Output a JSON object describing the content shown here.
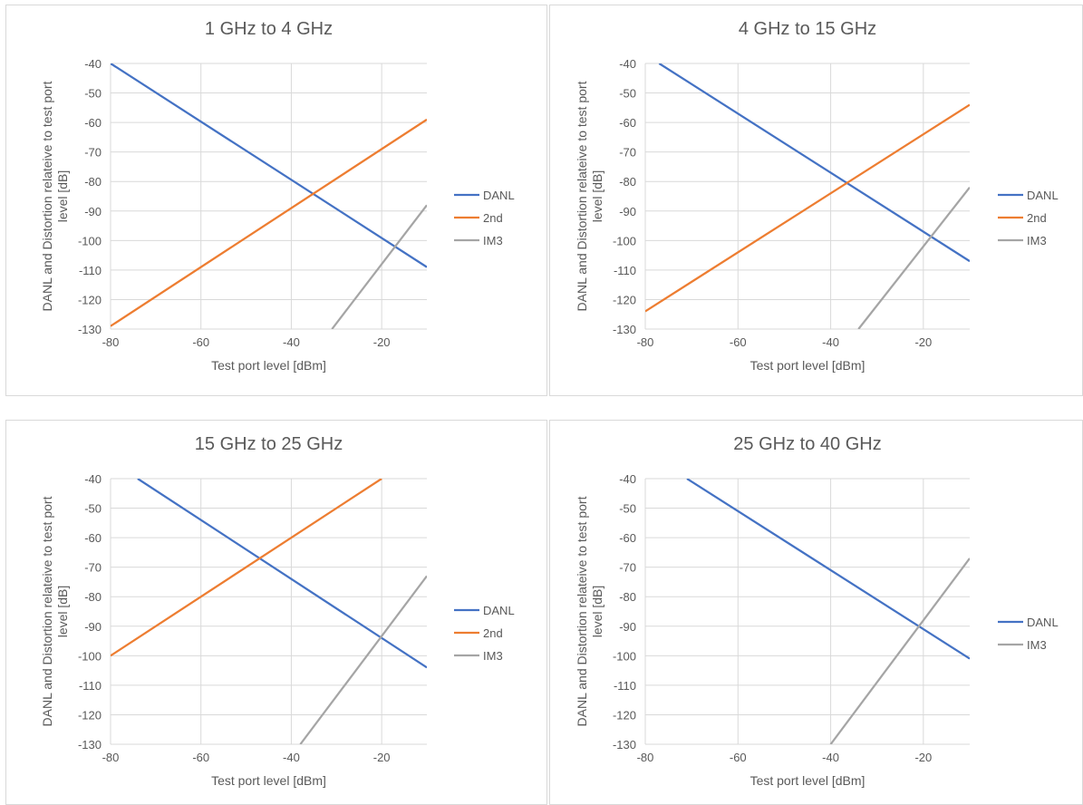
{
  "chart_data": [
    {
      "type": "line",
      "title": "1 GHz to 4 GHz",
      "xlabel": "Test port level [dBm]",
      "ylabel": "DANL  and Distortion relateive to test port level [dB]",
      "xlim": [
        -80,
        -10
      ],
      "ylim": [
        -130,
        -40
      ],
      "xticks": [
        -80,
        -60,
        -40,
        -20
      ],
      "yticks": [
        -40,
        -50,
        -60,
        -70,
        -80,
        -90,
        -100,
        -110,
        -120,
        -130
      ],
      "legend": "right",
      "grid": true,
      "series": [
        {
          "name": "DANL",
          "color": "#4472c4",
          "points": [
            [
              -80,
              -40
            ],
            [
              -10,
              -109
            ]
          ]
        },
        {
          "name": "2nd",
          "color": "#ed7d31",
          "points": [
            [
              -80,
              -129
            ],
            [
              -10,
              -59
            ]
          ]
        },
        {
          "name": "IM3",
          "color": "#a5a5a5",
          "points": [
            [
              -31,
              -130
            ],
            [
              -10,
              -88
            ]
          ]
        }
      ]
    },
    {
      "type": "line",
      "title": "4 GHz to 15 GHz",
      "xlabel": "Test port level [dBm]",
      "ylabel": "DANL  and Distortion relateive to test port level [dB]",
      "xlim": [
        -80,
        -10
      ],
      "ylim": [
        -130,
        -40
      ],
      "xticks": [
        -80,
        -60,
        -40,
        -20
      ],
      "yticks": [
        -40,
        -50,
        -60,
        -70,
        -80,
        -90,
        -100,
        -110,
        -120,
        -130
      ],
      "legend": "right",
      "grid": true,
      "series": [
        {
          "name": "DANL",
          "color": "#4472c4",
          "points": [
            [
              -77,
              -40
            ],
            [
              -10,
              -107
            ]
          ]
        },
        {
          "name": "2nd",
          "color": "#ed7d31",
          "points": [
            [
              -80,
              -124
            ],
            [
              -10,
              -54
            ]
          ]
        },
        {
          "name": "IM3",
          "color": "#a5a5a5",
          "points": [
            [
              -34,
              -130
            ],
            [
              -10,
              -82
            ]
          ]
        }
      ]
    },
    {
      "type": "line",
      "title": "15 GHz to 25 GHz",
      "xlabel": "Test port level [dBm]",
      "ylabel": "DANL  and Distortion relateive to test port level [dB]",
      "xlim": [
        -80,
        -10
      ],
      "ylim": [
        -130,
        -40
      ],
      "xticks": [
        -80,
        -60,
        -40,
        -20
      ],
      "yticks": [
        -40,
        -50,
        -60,
        -70,
        -80,
        -90,
        -100,
        -110,
        -120,
        -130
      ],
      "legend": "right",
      "grid": true,
      "series": [
        {
          "name": "DANL",
          "color": "#4472c4",
          "points": [
            [
              -74,
              -40
            ],
            [
              -10,
              -104
            ]
          ]
        },
        {
          "name": "2nd",
          "color": "#ed7d31",
          "points": [
            [
              -80,
              -100
            ],
            [
              -20,
              -40
            ]
          ]
        },
        {
          "name": "IM3",
          "color": "#a5a5a5",
          "points": [
            [
              -38,
              -130
            ],
            [
              -10,
              -73
            ]
          ]
        }
      ]
    },
    {
      "type": "line",
      "title": "25 GHz to 40 GHz",
      "xlabel": "Test port level [dBm]",
      "ylabel": "DANL  and Distortion relateive to test port level [dB]",
      "xlim": [
        -80,
        -10
      ],
      "ylim": [
        -130,
        -40
      ],
      "xticks": [
        -80,
        -60,
        -40,
        -20
      ],
      "yticks": [
        -40,
        -50,
        -60,
        -70,
        -80,
        -90,
        -100,
        -110,
        -120,
        -130
      ],
      "legend": "right",
      "grid": true,
      "series": [
        {
          "name": "DANL",
          "color": "#4472c4",
          "points": [
            [
              -71,
              -40
            ],
            [
              -10,
              -101
            ]
          ]
        },
        {
          "name": "IM3",
          "color": "#a5a5a5",
          "points": [
            [
              -40,
              -130
            ],
            [
              -10,
              -67
            ]
          ]
        }
      ]
    }
  ]
}
